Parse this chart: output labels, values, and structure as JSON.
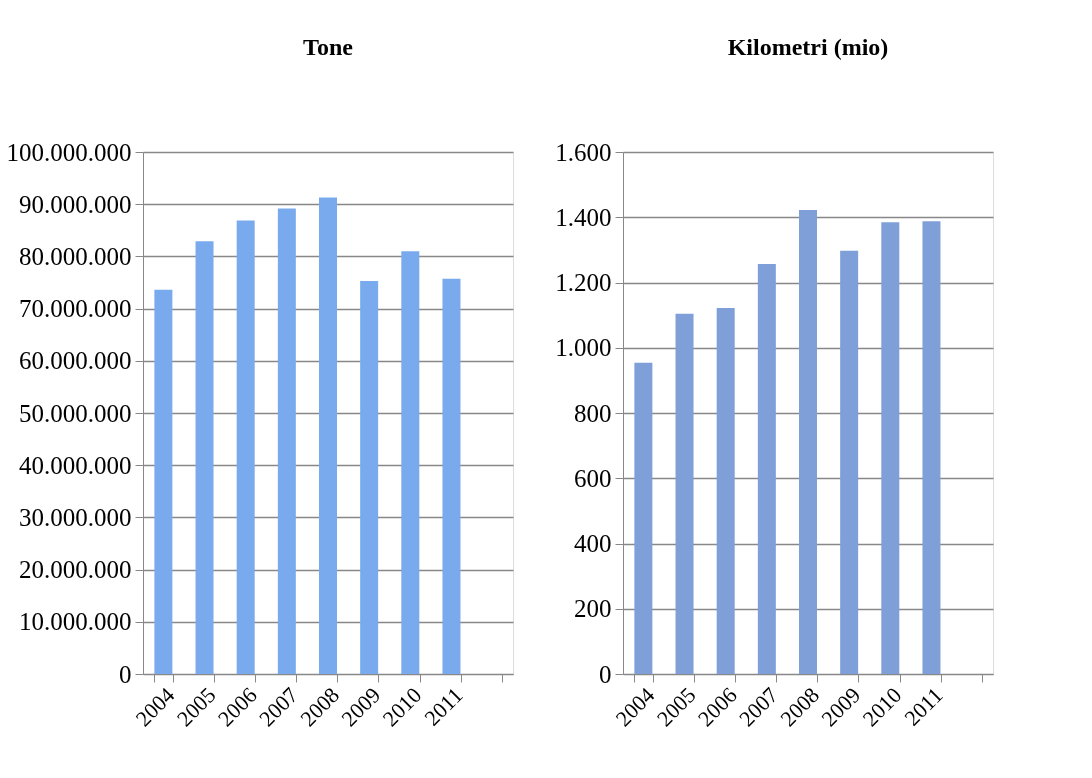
{
  "chart_data": [
    {
      "type": "bar",
      "title": "Tone",
      "categories": [
        "2004",
        "2005",
        "2006",
        "2007",
        "2008",
        "2009",
        "2010",
        "2011",
        null
      ],
      "values": [
        73600000,
        82900000,
        86900000,
        89200000,
        91300000,
        75300000,
        81000000,
        75700000,
        null
      ],
      "color": "#7aaaee",
      "ylim": [
        0,
        100000000
      ],
      "yticks": [
        0,
        {
          "value": 10000000,
          "label": "10.000.000"
        },
        {
          "value": 20000000,
          "label": "20.000.000"
        },
        {
          "value": 30000000,
          "label": "30.000.000"
        },
        {
          "value": 40000000,
          "label": "40.000.000"
        },
        {
          "value": 50000000,
          "label": "50.000.000"
        },
        {
          "value": 60000000,
          "label": "60.000.000"
        },
        {
          "value": 70000000,
          "label": "70.000.000"
        },
        {
          "value": 80000000,
          "label": "80.000.000"
        },
        {
          "value": 90000000,
          "label": "90.000.000"
        },
        {
          "value": 100000000,
          "label": "100.000.000"
        }
      ],
      "grid": "y"
    },
    {
      "type": "bar",
      "title": "Kilometri (mio)",
      "categories": [
        "2004",
        "2005",
        "2006",
        "2007",
        "2008",
        "2009",
        "2010",
        "2011",
        null
      ],
      "values": [
        954,
        1104,
        1122,
        1257,
        1422,
        1297,
        1385,
        1388,
        null
      ],
      "color": "#7f9fd8",
      "ylim": [
        0,
        1600
      ],
      "yticks": [
        0,
        200,
        400,
        600,
        800,
        {
          "value": 1000,
          "label": "1.000"
        },
        {
          "value": 1200,
          "label": "1.200"
        },
        {
          "value": 1400,
          "label": "1.400"
        },
        {
          "value": 1600,
          "label": "1.600"
        }
      ],
      "grid": "y"
    }
  ]
}
